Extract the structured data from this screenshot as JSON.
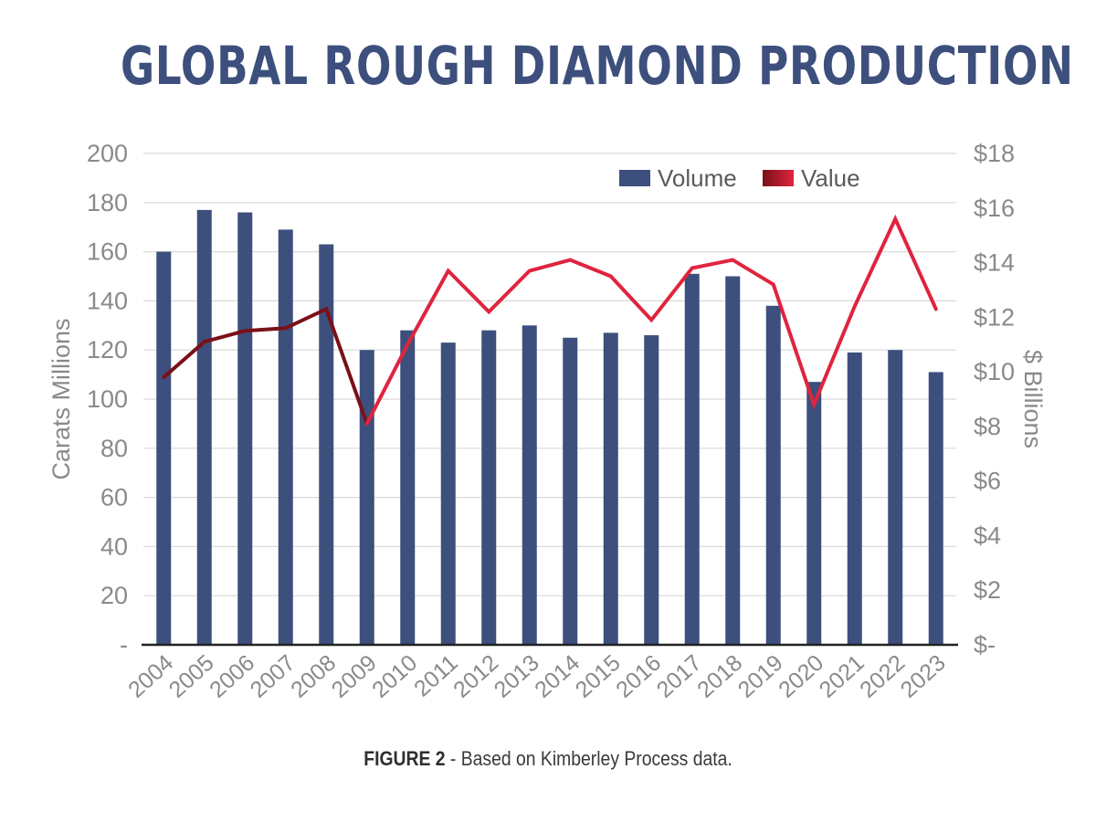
{
  "chart_data": {
    "type": "bar+line",
    "title": "GLOBAL ROUGH DIAMOND PRODUCTION",
    "caption_label": "FIGURE 2",
    "caption_text": " - Based on Kimberley Process data.",
    "categories": [
      "2004",
      "2005",
      "2006",
      "2007",
      "2008",
      "2009",
      "2010",
      "2011",
      "2012",
      "2013",
      "2014",
      "2015",
      "2016",
      "2017",
      "2018",
      "2019",
      "2020",
      "2021",
      "2022",
      "2023"
    ],
    "series": [
      {
        "name": "Volume",
        "kind": "bar",
        "axis": "left",
        "color": "#3d4f7c",
        "values": [
          160,
          177,
          176,
          169,
          163,
          120,
          128,
          123,
          128,
          130,
          125,
          127,
          126,
          151,
          150,
          138,
          107,
          119,
          120,
          111
        ]
      },
      {
        "name": "Value",
        "kind": "line",
        "axis": "right",
        "color": "#e0243e",
        "color_early": "#7a1018",
        "values": [
          9.8,
          11.1,
          11.5,
          11.6,
          12.3,
          8.1,
          11.0,
          13.7,
          12.2,
          13.7,
          14.1,
          13.5,
          11.9,
          13.8,
          14.1,
          13.2,
          8.8,
          12.4,
          15.6,
          12.3
        ]
      }
    ],
    "y_left": {
      "label": "Carats Millions",
      "ylim": [
        0,
        200
      ],
      "ticks": [
        0,
        20,
        40,
        60,
        80,
        100,
        120,
        140,
        160,
        180,
        200
      ],
      "tick_labels": [
        "-",
        "20",
        "40",
        "60",
        "80",
        "100",
        "120",
        "140",
        "160",
        "180",
        "200"
      ]
    },
    "y_right": {
      "label": "$ Billions",
      "ylim": [
        0,
        18
      ],
      "ticks": [
        0,
        2,
        4,
        6,
        8,
        10,
        12,
        14,
        16,
        18
      ],
      "tick_labels": [
        "$-",
        "$2",
        "$4",
        "$6",
        "$8",
        "$10",
        "$12",
        "$14",
        "$16",
        "$18"
      ]
    },
    "grid": true,
    "legend_position": "top-right",
    "colors": {
      "title": "#3d4f7c",
      "axis_text": "#8a8a8a",
      "grid": "#d9d9d9",
      "axis_line": "#222222"
    }
  }
}
